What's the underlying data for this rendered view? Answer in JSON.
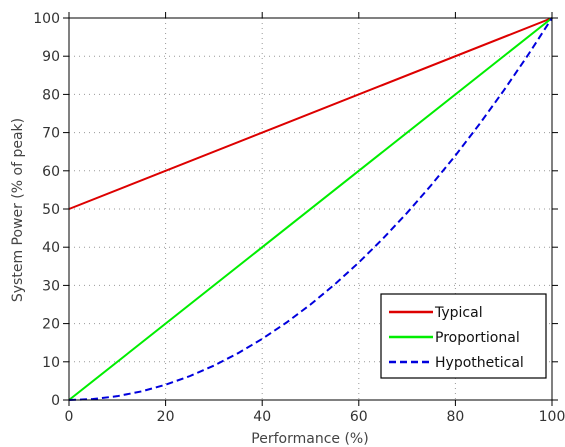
{
  "chart_data": {
    "type": "line",
    "title": "",
    "xlabel": "Performance (%)",
    "ylabel": "System Power (% of peak)",
    "xlim": [
      0,
      100
    ],
    "ylim": [
      0,
      100
    ],
    "xticks": [
      0,
      20,
      40,
      60,
      80,
      100
    ],
    "yticks": [
      0,
      10,
      20,
      30,
      40,
      50,
      60,
      70,
      80,
      90,
      100
    ],
    "grid": "dotted",
    "legend": "bottom-right",
    "series": [
      {
        "name": "Typical",
        "color": "#dd0000",
        "dash": "solid",
        "x": [
          0,
          100
        ],
        "y": [
          50,
          100
        ]
      },
      {
        "name": "Proportional",
        "color": "#00ee00",
        "dash": "solid",
        "x": [
          0,
          100
        ],
        "y": [
          0,
          100
        ]
      },
      {
        "name": "Hypothetical",
        "color": "#0000dd",
        "dash": "dashed",
        "x": [
          0,
          5,
          10,
          15,
          20,
          25,
          30,
          35,
          40,
          45,
          50,
          55,
          60,
          65,
          70,
          75,
          80,
          85,
          90,
          95,
          100
        ],
        "y": [
          0,
          0.25,
          1,
          2.25,
          4,
          6.25,
          9,
          12.25,
          16,
          20.25,
          25,
          30.25,
          36,
          42.25,
          49,
          56.25,
          64,
          72.25,
          81,
          90.25,
          100
        ]
      }
    ]
  }
}
